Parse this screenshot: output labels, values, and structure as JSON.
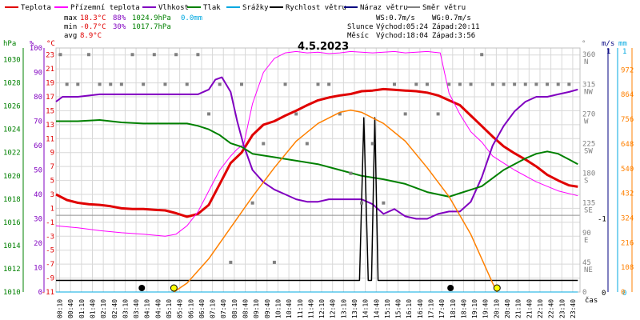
{
  "chart_data": {
    "type": "line",
    "title": "4.5.2023",
    "xlabel": "čas",
    "legend": [
      {
        "label": "Teplota",
        "color": "#e00000"
      },
      {
        "label": "Přízemní teplota",
        "color": "#ff00ff"
      },
      {
        "label": "Vlhkost",
        "color": "#8000c0"
      },
      {
        "label": "Tlak",
        "color": "#008000"
      },
      {
        "label": "Srážky",
        "color": "#00a8e0"
      },
      {
        "label": "Rychlost větru",
        "color": "#000000"
      },
      {
        "label": "Náraz větru",
        "color": "#000080"
      },
      {
        "label": "Směr větru",
        "color": "#808080"
      }
    ],
    "stats": {
      "max_label": "max",
      "min_label": "min",
      "avg_label": "avg",
      "temp_max": "18.3°C",
      "temp_min": "-0.7°C",
      "temp_avg": "8.9°C",
      "hum_max": "88%",
      "hum_min": "30%",
      "press_max": "1024.9hPa",
      "press_min": "1017.7hPa",
      "rain": "0.0mm",
      "ws": "WS:0.7m/s",
      "wg": "WG:0.7m/s",
      "sun_label": "Slunce",
      "sun_rise": "Východ:05:24",
      "sun_set": "Západ:20:11",
      "moon_label": "Měsíc",
      "moon_rise": "Východ:18:04",
      "moon_set": "Západ:3:56"
    },
    "axes": {
      "hpa_unit": "hPa",
      "hpa_ticks": [
        "1030",
        "1028",
        "1026",
        "1024",
        "1022",
        "1020",
        "1018",
        "1016",
        "1014",
        "1012",
        "1010"
      ],
      "pct_unit": "%",
      "pct_ticks": [
        "100",
        "90",
        "80",
        "70",
        "60",
        "50",
        "40",
        "30",
        "20",
        "10",
        "0"
      ],
      "temp_unit": "°C",
      "temp_ticks": [
        "23",
        "21",
        "19",
        "17",
        "15",
        "13",
        "11",
        "9",
        "7",
        "5",
        "3",
        "1",
        "-1",
        "-3",
        "-5",
        "-7",
        "-9",
        "-11"
      ],
      "dir_unit": "°",
      "dir_ticks": [
        "360",
        "315",
        "270",
        "225",
        "180",
        "135",
        "90",
        "45",
        "0"
      ],
      "dir_labels": [
        "N",
        "NW",
        "W",
        "SW",
        "S",
        "SE",
        "E",
        "NE"
      ],
      "ms_unit": "m/s",
      "ms_ticks": [
        "1",
        "-1",
        "0"
      ],
      "mm_unit": "mm",
      "mm_ticks": [
        "1",
        "0"
      ],
      "sun_ticks": [
        "972",
        "864",
        "756",
        "648",
        "540",
        "432",
        "324",
        "216",
        "108",
        "0"
      ],
      "xticks": [
        "00:10",
        "00:40",
        "01:10",
        "01:40",
        "02:10",
        "02:40",
        "03:10",
        "03:40",
        "04:10",
        "04:40",
        "05:10",
        "05:40",
        "06:10",
        "06:40",
        "07:10",
        "07:40",
        "08:10",
        "08:40",
        "09:10",
        "09:40",
        "10:10",
        "10:40",
        "11:10",
        "11:40",
        "12:10",
        "12:40",
        "13:10",
        "13:40",
        "14:10",
        "14:40",
        "15:10",
        "15:40",
        "16:10",
        "16:40",
        "17:10",
        "17:40",
        "18:10",
        "18:40",
        "19:10",
        "19:40",
        "20:10",
        "20:40",
        "21:10",
        "21:40",
        "22:10",
        "22:40",
        "23:10",
        "23:40"
      ]
    },
    "x_hours_range": [
      0,
      24
    ],
    "series": [
      {
        "name": "Teplota",
        "color": "#e00000",
        "unit": "°C",
        "x": [
          0,
          0.5,
          1,
          1.5,
          2,
          2.5,
          3,
          3.5,
          4,
          4.5,
          5,
          5.5,
          6,
          6.5,
          7,
          7.5,
          8,
          8.5,
          9,
          9.5,
          10,
          10.5,
          11,
          11.5,
          12,
          12.5,
          13,
          13.5,
          14,
          14.5,
          15,
          15.5,
          16,
          16.5,
          17,
          17.5,
          18,
          18.5,
          19,
          19.5,
          20,
          20.5,
          21,
          21.5,
          22,
          22.5,
          23,
          23.5,
          23.9
        ],
        "y": [
          3,
          2.2,
          1.8,
          1.6,
          1.5,
          1.3,
          1.0,
          0.9,
          0.9,
          0.8,
          0.7,
          0.3,
          -0.2,
          0.2,
          1.5,
          4.5,
          7.5,
          9.0,
          11.5,
          13.0,
          13.5,
          14.3,
          15.0,
          15.8,
          16.5,
          16.9,
          17.2,
          17.4,
          17.8,
          17.9,
          18.1,
          18.0,
          17.9,
          17.8,
          17.6,
          17.2,
          16.5,
          15.8,
          14.3,
          12.8,
          11.3,
          9.9,
          8.9,
          8.0,
          7.0,
          5.8,
          5.0,
          4.3,
          4.1
        ]
      },
      {
        "name": "Přízemní teplota",
        "color": "#ff00ff",
        "unit": "°C",
        "x": [
          0,
          1,
          2,
          3,
          4,
          5,
          5.5,
          6,
          6.5,
          7,
          7.5,
          8,
          8.3,
          8.6,
          9,
          9.5,
          10,
          10.5,
          11,
          11.5,
          12,
          12.5,
          13,
          13.5,
          14,
          14.5,
          15,
          15.5,
          16,
          16.5,
          17,
          17.3,
          17.6,
          18,
          18.5,
          19,
          19.5,
          20,
          21,
          22,
          23,
          23.9
        ],
        "y": [
          -1.5,
          -1.8,
          -2.2,
          -2.5,
          -2.7,
          -3.0,
          -2.7,
          -1.5,
          0.5,
          3.5,
          6.5,
          8.5,
          9.5,
          10.2,
          16.0,
          20.5,
          22.5,
          23.3,
          23.5,
          23.3,
          23.4,
          23.2,
          23.3,
          23.5,
          23.4,
          23.3,
          23.4,
          23.5,
          23.3,
          23.4,
          23.5,
          23.4,
          23.3,
          17.5,
          14.5,
          12.0,
          10.5,
          8.5,
          6.5,
          4.8,
          3.5,
          2.8
        ]
      },
      {
        "name": "Vlhkost",
        "color": "#8000c0",
        "unit": "%",
        "x": [
          0,
          0.3,
          1,
          2,
          3,
          4,
          4.5,
          5,
          5.5,
          6,
          6.5,
          7,
          7.3,
          7.6,
          8,
          8.3,
          8.6,
          9,
          9.5,
          10,
          10.5,
          11,
          11.5,
          12,
          12.5,
          13,
          13.5,
          14,
          14.5,
          15,
          15.5,
          16,
          16.5,
          17,
          17.5,
          18,
          18.5,
          19,
          19.5,
          20,
          20.5,
          21,
          21.5,
          22,
          22.5,
          23,
          23.5,
          23.9
        ],
        "y": [
          78,
          80,
          80,
          81,
          81,
          81,
          81,
          81,
          81,
          81,
          81,
          83,
          87,
          88,
          82,
          70,
          60,
          50,
          45,
          42,
          40,
          38,
          37,
          37,
          38,
          38,
          38,
          38,
          36,
          32,
          34,
          31,
          30,
          30,
          32,
          33,
          33,
          37,
          47,
          60,
          68,
          74,
          78,
          80,
          80,
          81,
          82,
          83
        ]
      },
      {
        "name": "Tlak",
        "color": "#008000",
        "unit": "hPa",
        "x": [
          0,
          1,
          2,
          3,
          4,
          5,
          6,
          6.5,
          7,
          7.5,
          8,
          8.5,
          9,
          10,
          11,
          12,
          13,
          14,
          15,
          16,
          17,
          17.5,
          18,
          18.5,
          19,
          19.5,
          20,
          20.5,
          21,
          21.5,
          22,
          22.5,
          23,
          23.5,
          23.9
        ],
        "y": [
          1024.7,
          1024.7,
          1024.8,
          1024.6,
          1024.5,
          1024.5,
          1024.5,
          1024.3,
          1024.0,
          1023.5,
          1022.8,
          1022.5,
          1021.9,
          1021.6,
          1021.3,
          1021.0,
          1020.5,
          1020.0,
          1019.7,
          1019.3,
          1018.6,
          1018.4,
          1018.2,
          1018.5,
          1018.8,
          1019.1,
          1019.8,
          1020.5,
          1021.0,
          1021.5,
          1021.9,
          1022.1,
          1021.9,
          1021.4,
          1021.0
        ]
      },
      {
        "name": "Srážky",
        "color": "#00a8e0",
        "unit": "mm",
        "x": [
          0,
          23.9
        ],
        "y": [
          0,
          0
        ]
      },
      {
        "name": "Rychlost větru",
        "color": "#000000",
        "unit": "m/s",
        "x": [
          0,
          13.9,
          14.1,
          14.3,
          14.45,
          14.6,
          14.75,
          14.9,
          15.1,
          23.9
        ],
        "y": [
          0,
          0,
          0.7,
          0,
          0,
          0.7,
          0,
          0,
          0,
          0
        ]
      },
      {
        "name": "Směr větru",
        "color": "#808080",
        "unit": "°",
        "x": [
          0.2,
          0.5,
          1,
          1.5,
          2,
          2.5,
          3,
          3.5,
          4,
          4.5,
          5,
          5.5,
          6,
          6.5,
          7,
          7.5,
          8,
          8.5,
          9,
          9.5,
          10,
          10.5,
          11,
          11.5,
          12,
          12.5,
          13,
          13.5,
          14,
          14.5,
          15,
          15.5,
          16,
          16.5,
          17,
          17.5,
          18,
          18.5,
          19,
          19.5,
          20,
          20.5,
          21,
          21.5,
          22,
          22.5,
          23,
          23.5
        ],
        "y": [
          360,
          315,
          315,
          360,
          315,
          315,
          315,
          360,
          315,
          360,
          315,
          360,
          315,
          360,
          270,
          315,
          45,
          315,
          135,
          225,
          45,
          315,
          270,
          225,
          315,
          315,
          270,
          180,
          135,
          225,
          135,
          315,
          270,
          315,
          315,
          270,
          315,
          315,
          315,
          360,
          315,
          315,
          315,
          315,
          315,
          315,
          315,
          315
        ]
      },
      {
        "name": "sun",
        "color": "#ff8000",
        "unit": "W/m2",
        "x": [
          5.4,
          6,
          7,
          8,
          9,
          10,
          11,
          12,
          13,
          13.5,
          14,
          15,
          16,
          17,
          18,
          19,
          20,
          20.2
        ],
        "y": [
          0,
          40,
          150,
          290,
          430,
          560,
          680,
          760,
          810,
          820,
          810,
          760,
          680,
          560,
          430,
          260,
          40,
          0
        ]
      }
    ],
    "ylim_hpa": [
      1010,
      1031
    ],
    "ylim_pct": [
      0,
      100
    ],
    "ylim_temp": [
      -11,
      24
    ],
    "ylim_dir": [
      0,
      370
    ],
    "ylim_sun": [
      0,
      1100
    ]
  }
}
